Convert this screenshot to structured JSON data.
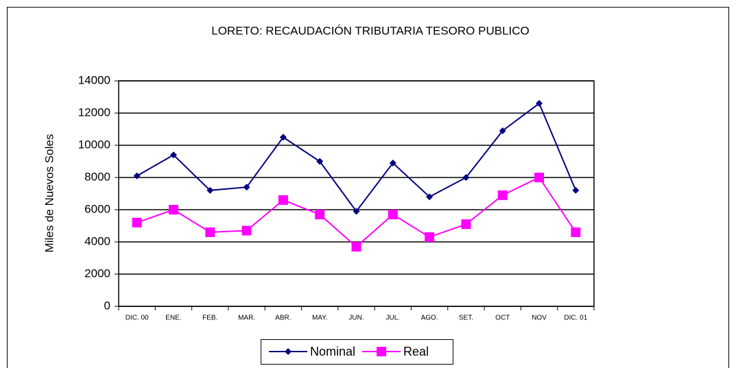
{
  "chart_data": {
    "type": "line",
    "title": "LORETO: RECAUDACIÓN TRIBUTARIA TESORO PUBLICO",
    "y_label": "Miles de Nuevos Soles",
    "categories": [
      "DIC. 00",
      "ENE.",
      "FEB.",
      "MAR.",
      "ABR.",
      "MAY.",
      "JUN.",
      "JUL.",
      "AGO.",
      "SET.",
      "OCT",
      "NOV",
      "DIC. 01"
    ],
    "series": [
      {
        "name": "Nominal",
        "color": "#000080",
        "marker": "diamond",
        "values": [
          8100,
          9400,
          7200,
          7400,
          10500,
          9000,
          5900,
          8900,
          6800,
          8000,
          10900,
          12600,
          7200
        ]
      },
      {
        "name": "Real",
        "color": "#ff00ff",
        "marker": "square",
        "values": [
          5200,
          6000,
          4600,
          4700,
          6600,
          5700,
          3700,
          5700,
          4300,
          5100,
          6900,
          8000,
          4600
        ]
      }
    ],
    "ylim": [
      0,
      14000
    ],
    "yticks": [
      0,
      2000,
      4000,
      6000,
      8000,
      10000,
      12000,
      14000
    ],
    "grid": true,
    "legend": "bottom"
  }
}
